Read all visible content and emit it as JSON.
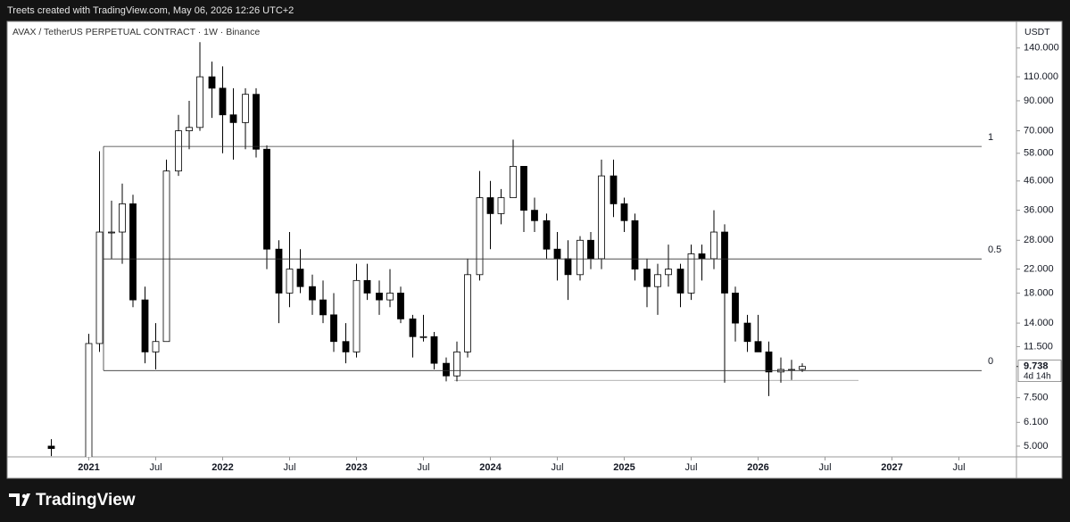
{
  "header": {
    "caption": "Treets created with TradingView.com, May 06, 2026 12:26 UTC+2"
  },
  "footer": {
    "logo": "TradingView"
  },
  "chart_data": {
    "type": "candlestick",
    "title": "AVAX / TetherUS PERPETUAL CONTRACT · 1W · Binance",
    "currency": "USDT",
    "log_scale": true,
    "up_color": "#ffffff",
    "down_color": "#000000",
    "outline_color": "#000000",
    "xlim": [
      2020.39,
      2027.93
    ],
    "xticks": [
      {
        "value": 2021,
        "label": "2021"
      },
      {
        "value": 2021.5,
        "label": "Jul"
      },
      {
        "value": 2022,
        "label": "2022"
      },
      {
        "value": 2022.5,
        "label": "Jul"
      },
      {
        "value": 2023,
        "label": "2023"
      },
      {
        "value": 2023.5,
        "label": "Jul"
      },
      {
        "value": 2024,
        "label": "2024"
      },
      {
        "value": 2024.5,
        "label": "Jul"
      },
      {
        "value": 2025,
        "label": "2025"
      },
      {
        "value": 2025.5,
        "label": "Jul"
      },
      {
        "value": 2026,
        "label": "2026"
      },
      {
        "value": 2026.5,
        "label": "Jul"
      },
      {
        "value": 2027,
        "label": "2027"
      },
      {
        "value": 2027.5,
        "label": "Jul"
      }
    ],
    "ylim": [
      4.57,
      171
    ],
    "yticks": [
      {
        "value": 140,
        "label": "140.000"
      },
      {
        "value": 110,
        "label": "110.000"
      },
      {
        "value": 90,
        "label": "90.000"
      },
      {
        "value": 70,
        "label": "70.000"
      },
      {
        "value": 58,
        "label": "58.000"
      },
      {
        "value": 46,
        "label": "46.000"
      },
      {
        "value": 36,
        "label": "36.000"
      },
      {
        "value": 28,
        "label": "28.000"
      },
      {
        "value": 22,
        "label": "22.000"
      },
      {
        "value": 18,
        "label": "18.000"
      },
      {
        "value": 14,
        "label": "14.000"
      },
      {
        "value": 11.5,
        "label": "11.500"
      },
      {
        "value": 7.5,
        "label": "7.500"
      },
      {
        "value": 6.1,
        "label": "6.100"
      },
      {
        "value": 5,
        "label": "5.000"
      }
    ],
    "last_price": {
      "value": 9.738,
      "countdown": "4d 14h"
    },
    "fib": {
      "start": 2021.11,
      "end": 2027.67,
      "levels": [
        {
          "label": "1",
          "price": 61.4
        },
        {
          "label": "0.5",
          "price": 23.95
        },
        {
          "label": "0",
          "price": 9.41
        }
      ]
    },
    "support_line": {
      "start": 2023.73,
      "end": 2026.75,
      "price": 8.67
    },
    "x": [
      2020.72,
      2021.0,
      2021.08,
      2021.17,
      2021.25,
      2021.33,
      2021.42,
      2021.5,
      2021.58,
      2021.67,
      2021.75,
      2021.83,
      2021.92,
      2022.0,
      2022.08,
      2022.17,
      2022.25,
      2022.33,
      2022.42,
      2022.5,
      2022.58,
      2022.67,
      2022.75,
      2022.83,
      2022.92,
      2023.0,
      2023.08,
      2023.17,
      2023.25,
      2023.33,
      2023.42,
      2023.5,
      2023.58,
      2023.67,
      2023.75,
      2023.83,
      2023.92,
      2024.0,
      2024.08,
      2024.17,
      2024.25,
      2024.33,
      2024.42,
      2024.5,
      2024.58,
      2024.67,
      2024.75,
      2024.83,
      2024.92,
      2025.0,
      2025.08,
      2025.17,
      2025.25,
      2025.33,
      2025.42,
      2025.5,
      2025.58,
      2025.67,
      2025.75,
      2025.83,
      2025.92,
      2026.0,
      2026.08,
      2026.17,
      2026.25,
      2026.33
    ],
    "open": [
      5,
      3.4,
      11.8,
      30,
      30,
      38,
      17,
      11,
      12,
      50,
      70,
      72,
      110,
      100,
      80,
      75,
      95,
      60,
      26,
      18,
      22,
      19,
      17,
      15,
      12,
      11,
      20,
      18,
      17,
      18,
      14.5,
      12.5,
      12.5,
      10,
      9,
      11,
      21,
      40,
      35,
      40,
      52,
      36,
      33,
      26,
      24,
      21,
      28,
      24,
      48,
      38,
      33,
      22,
      19,
      21,
      22,
      18,
      25,
      24,
      30,
      18,
      14,
      12,
      11,
      9.3,
      9.5,
      9.5
    ],
    "high": [
      5.3,
      12.8,
      59,
      39,
      45,
      41,
      19,
      14,
      55,
      80,
      90,
      147,
      125,
      120,
      100,
      100,
      100,
      62,
      28,
      30,
      26,
      21,
      20,
      18,
      14,
      23,
      23,
      20,
      22,
      19,
      15,
      15,
      13,
      10.5,
      12,
      24,
      50,
      46,
      43,
      65,
      52,
      40,
      35,
      30,
      28,
      29,
      30,
      55,
      55,
      40,
      35,
      24,
      23,
      27,
      23,
      27,
      27,
      36,
      32,
      19,
      15,
      15,
      12,
      10.5,
      10.3,
      10
    ],
    "low": [
      4.6,
      3.1,
      11,
      24,
      23,
      16,
      10,
      9.5,
      12,
      48,
      60,
      70,
      78,
      58,
      55,
      60,
      56,
      22,
      14,
      16,
      18,
      15,
      14,
      11,
      10,
      10.5,
      17,
      15,
      16,
      14,
      10.5,
      12,
      9.5,
      8.6,
      8.6,
      10.5,
      20,
      26,
      32,
      40,
      30,
      30,
      24,
      20,
      17,
      20,
      22,
      22,
      34,
      30,
      20,
      16,
      15,
      19,
      16,
      17,
      20,
      22,
      8.5,
      12,
      11,
      11.5,
      7.6,
      8.5,
      8.7,
      9.3
    ],
    "close": [
      4.9,
      11.8,
      30,
      30,
      38,
      17,
      11,
      12,
      50,
      70,
      72,
      110,
      100,
      80,
      75,
      95,
      60,
      26,
      18,
      22,
      19,
      17,
      15,
      12,
      11,
      20,
      18,
      17,
      18,
      14.5,
      12.5,
      12.5,
      10,
      9,
      11,
      21,
      40,
      35,
      40,
      52,
      36,
      33,
      26,
      24,
      21,
      28,
      24,
      48,
      38,
      33,
      22,
      19,
      21,
      22,
      18,
      25,
      24,
      30,
      18,
      14,
      12,
      11,
      9.3,
      9.5,
      9.5,
      9.738
    ]
  }
}
